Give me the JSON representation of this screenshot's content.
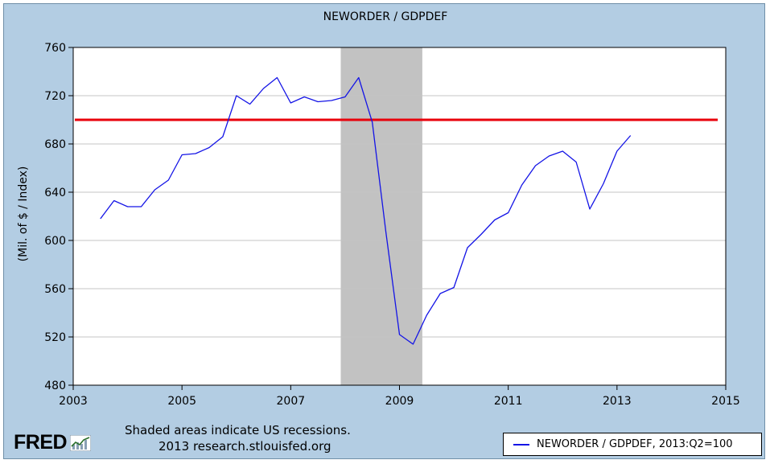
{
  "chart_data": {
    "type": "line",
    "title": "NEWORDER / GDPDEF",
    "ylabel": "(Mil. of $ / Index)",
    "xlabel": "",
    "xlim": [
      2003,
      2015
    ],
    "ylim": [
      480,
      760
    ],
    "x_ticks": [
      "2003",
      "2005",
      "2007",
      "2009",
      "2011",
      "2013",
      "2015"
    ],
    "y_ticks": [
      "480",
      "520",
      "560",
      "600",
      "640",
      "680",
      "720",
      "760"
    ],
    "grid": true,
    "recession_band": [
      2007.92,
      2009.42
    ],
    "reference_line": {
      "y": 700,
      "color": "#e8000b"
    },
    "series": [
      {
        "name": "NEWORDER / GDPDEF, 2013:Q2=100",
        "color": "#1414e6",
        "x": [
          2003.5,
          2003.75,
          2004.0,
          2004.25,
          2004.5,
          2004.75,
          2005.0,
          2005.25,
          2005.5,
          2005.75,
          2006.0,
          2006.25,
          2006.5,
          2006.75,
          2007.0,
          2007.25,
          2007.5,
          2007.75,
          2008.0,
          2008.25,
          2008.5,
          2008.75,
          2009.0,
          2009.25,
          2009.5,
          2009.75,
          2010.0,
          2010.25,
          2010.5,
          2010.75,
          2011.0,
          2011.25,
          2011.5,
          2011.75,
          2012.0,
          2012.25,
          2012.5,
          2012.75,
          2013.0,
          2013.25
        ],
        "values": [
          618,
          633,
          628,
          628,
          642,
          650,
          671,
          672,
          677,
          686,
          720,
          713,
          726,
          735,
          714,
          719,
          715,
          716,
          719,
          735,
          698,
          607,
          522,
          514,
          538,
          556,
          561,
          594,
          605,
          617,
          623,
          646,
          662,
          670,
          674,
          665,
          626,
          647,
          674,
          687
        ]
      }
    ]
  },
  "footer": {
    "note_line1": "Shaded areas indicate US recessions.",
    "note_line2": "2013 research.stlouisfed.org",
    "logo_text": "FRED"
  },
  "legend": {
    "label": "NEWORDER / GDPDEF, 2013:Q2=100",
    "color": "#1414e6"
  }
}
